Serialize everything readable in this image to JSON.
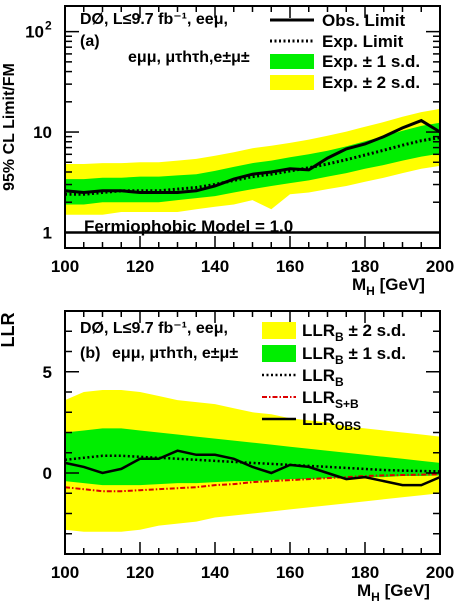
{
  "chart_data": [
    {
      "type": "line",
      "panel": "a",
      "ylabel": "95% CL Limit/FM",
      "xlabel_main": "M",
      "xlabel_sub": "H",
      "xlabel_unit": " [GeV]",
      "xlim": [
        100,
        200
      ],
      "ylim": [
        0.7,
        180
      ],
      "log_y": true,
      "x_ticks": [
        "100",
        "120",
        "140",
        "160",
        "180",
        "200"
      ],
      "y_ticks": [
        "1",
        "10",
        "10"
      ],
      "y_tick_sup": "2",
      "annotation_line1": "DØ, L≤9.7 fb⁻¹, eeμ,",
      "annotation_line2": "(a)",
      "annotation_line3": "eμμ, μτhτh,e±μ±",
      "reference_label": "Fermiophobic Model = 1.0",
      "reference_value": 1.0,
      "legend": [
        "Obs. Limit",
        "Exp. Limit",
        "Exp. ± 1 s.d.",
        "Exp. ± 2 s.d."
      ],
      "colors": {
        "band1": "#00ee00",
        "band2": "#ffff00",
        "observed": "#000000",
        "expected": "#000000"
      },
      "x": [
        100,
        105,
        110,
        115,
        120,
        125,
        130,
        135,
        140,
        145,
        150,
        155,
        160,
        165,
        170,
        175,
        180,
        185,
        190,
        195,
        200
      ],
      "observed": [
        2.6,
        2.5,
        2.6,
        2.6,
        2.5,
        2.5,
        2.5,
        2.6,
        2.9,
        3.4,
        3.8,
        4.0,
        4.3,
        4.2,
        5.5,
        6.8,
        7.6,
        9.0,
        11.0,
        13.0,
        10.0
      ],
      "expected": [
        2.4,
        2.4,
        2.5,
        2.6,
        2.6,
        2.6,
        2.7,
        2.8,
        3.0,
        3.3,
        3.6,
        3.8,
        4.1,
        4.4,
        4.8,
        5.3,
        5.9,
        6.6,
        7.4,
        8.2,
        8.8
      ],
      "band1_low": [
        1.9,
        1.9,
        2.0,
        2.0,
        2.0,
        2.0,
        2.1,
        2.2,
        2.3,
        2.5,
        2.7,
        2.9,
        3.1,
        3.3,
        3.6,
        3.9,
        4.3,
        4.7,
        5.2,
        5.7,
        6.1
      ],
      "band1_high": [
        3.4,
        3.4,
        3.5,
        3.5,
        3.6,
        3.6,
        3.7,
        3.8,
        4.1,
        4.5,
        4.9,
        5.2,
        5.6,
        6.0,
        6.5,
        7.2,
        8.1,
        9.1,
        10.3,
        11.5,
        12.4
      ],
      "band2_low": [
        1.5,
        1.5,
        1.5,
        1.6,
        1.6,
        1.6,
        1.6,
        1.7,
        1.8,
        1.9,
        2.1,
        1.7,
        2.4,
        2.5,
        2.7,
        2.9,
        3.2,
        3.5,
        3.9,
        4.3,
        4.6
      ],
      "band2_high": [
        4.8,
        4.8,
        4.9,
        4.9,
        5.0,
        5.0,
        5.2,
        5.4,
        5.8,
        6.3,
        6.9,
        7.3,
        7.8,
        8.4,
        9.2,
        10.1,
        11.3,
        12.6,
        14.2,
        15.8,
        17.0
      ]
    },
    {
      "type": "line",
      "panel": "b",
      "ylabel": "LLR",
      "xlabel_main": "M",
      "xlabel_sub": "H",
      "xlabel_unit": " [GeV]",
      "xlim": [
        100,
        200
      ],
      "ylim": [
        -4,
        8
      ],
      "x_ticks": [
        "100",
        "120",
        "140",
        "160",
        "180",
        "200"
      ],
      "y_ticks": [
        "0",
        "5"
      ],
      "annotation_line1": "DØ, L≤9.7 fb⁻¹, eeμ,",
      "annotation_line2": "(b)",
      "annotation_line3": "eμμ, μτhτh, e±μ±",
      "legend": [
        {
          "main": "LLR",
          "sub": "B",
          "suffix": " ± 2 s.d."
        },
        {
          "main": "LLR",
          "sub": "B",
          "suffix": " ± 1 s.d."
        },
        {
          "main": "LLR",
          "sub": "B",
          "suffix": ""
        },
        {
          "main": "LLR",
          "sub": "S+B",
          "suffix": ""
        },
        {
          "main": "LLR",
          "sub": "OBS",
          "suffix": ""
        }
      ],
      "colors": {
        "band1": "#00ee00",
        "band2": "#ffff00",
        "sb": "#dd0000",
        "b": "#000000",
        "obs": "#000000"
      },
      "x": [
        100,
        105,
        110,
        115,
        120,
        125,
        130,
        135,
        140,
        145,
        150,
        155,
        160,
        165,
        170,
        175,
        180,
        185,
        190,
        195,
        200
      ],
      "llr_obs": [
        0.5,
        0.3,
        0.0,
        0.2,
        0.7,
        0.7,
        1.1,
        0.9,
        0.9,
        0.7,
        0.3,
        0.0,
        0.4,
        0.3,
        0.0,
        -0.3,
        -0.2,
        -0.4,
        -0.6,
        -0.6,
        -0.2
      ],
      "llr_b": [
        0.65,
        0.75,
        0.85,
        0.85,
        0.8,
        0.75,
        0.7,
        0.65,
        0.6,
        0.55,
        0.5,
        0.45,
        0.4,
        0.35,
        0.3,
        0.25,
        0.2,
        0.15,
        0.12,
        0.1,
        0.08
      ],
      "llr_sb": [
        -0.7,
        -0.8,
        -0.9,
        -0.9,
        -0.85,
        -0.8,
        -0.75,
        -0.7,
        -0.6,
        -0.55,
        -0.45,
        -0.4,
        -0.35,
        -0.3,
        -0.25,
        -0.2,
        -0.15,
        -0.12,
        -0.1,
        -0.08,
        -0.07
      ],
      "band1_low": [
        -0.4,
        -0.5,
        -0.6,
        -0.6,
        -0.6,
        -0.55,
        -0.5,
        -0.5,
        -0.45,
        -0.4,
        -0.4,
        -0.35,
        -0.3,
        -0.3,
        -0.25,
        -0.25,
        -0.2,
        -0.2,
        -0.15,
        -0.15,
        -0.12
      ],
      "band1_high": [
        2.0,
        2.1,
        2.2,
        2.2,
        2.1,
        2.0,
        1.9,
        1.8,
        1.7,
        1.6,
        1.5,
        1.4,
        1.3,
        1.2,
        1.1,
        1.0,
        0.9,
        0.8,
        0.7,
        0.6,
        0.5
      ],
      "band2_low": [
        -2.8,
        -2.9,
        -2.9,
        -2.9,
        -2.8,
        -2.6,
        -2.5,
        -2.4,
        -2.2,
        -2.1,
        -2.0,
        -1.9,
        -1.8,
        -1.7,
        -1.6,
        -1.5,
        -1.4,
        -1.3,
        -1.2,
        -1.1,
        -1.0
      ],
      "band2_high": [
        3.6,
        4.0,
        4.1,
        4.1,
        4.0,
        3.8,
        3.6,
        3.5,
        3.4,
        3.2,
        3.0,
        2.9,
        2.7,
        2.6,
        2.5,
        2.3,
        2.2,
        2.1,
        2.0,
        1.9,
        1.8
      ]
    }
  ]
}
